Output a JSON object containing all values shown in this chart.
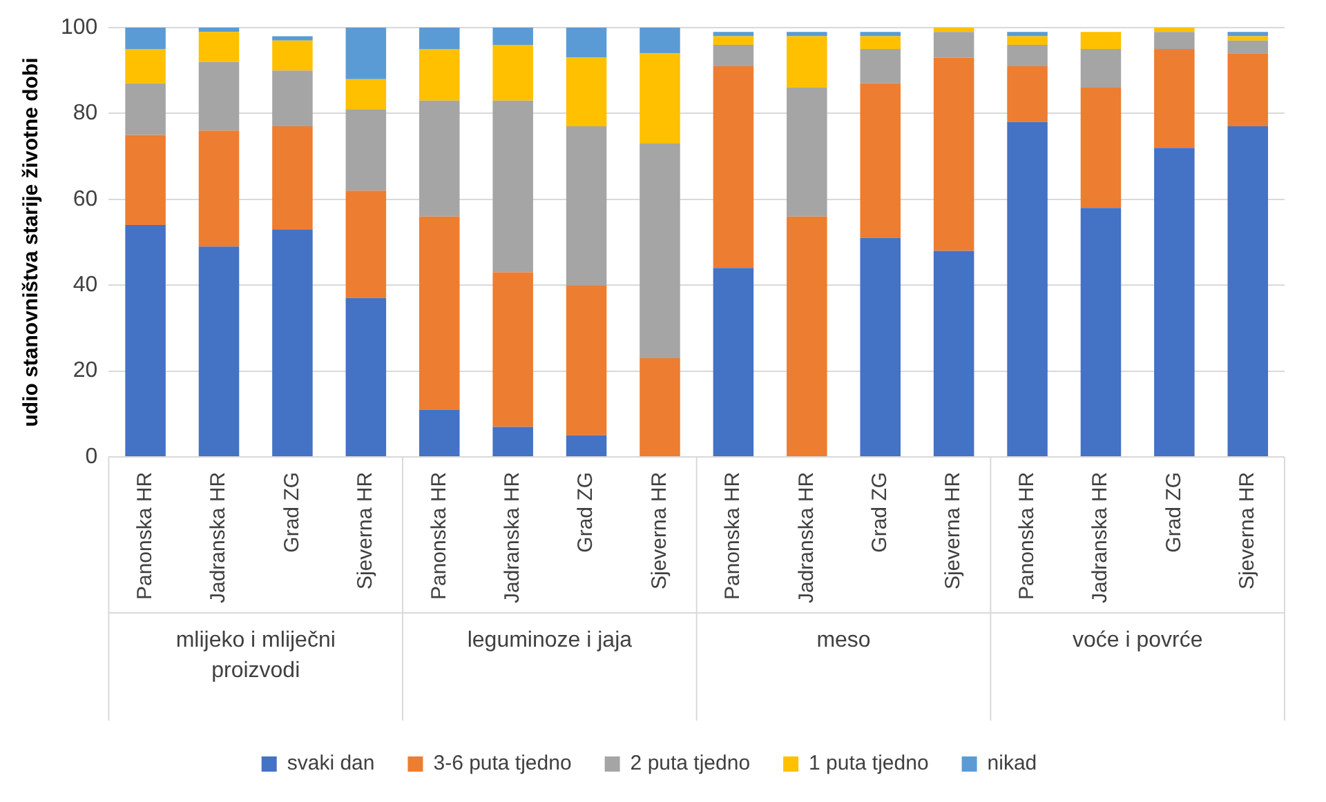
{
  "chart_data": {
    "type": "bar",
    "stacked": true,
    "ylabel": "udio stanovništva starije životne dobi",
    "categories": [
      "Panonska HR",
      "Jadranska HR",
      "Grad ZG",
      "Sjeverna HR",
      "Panonska HR",
      "Jadranska HR",
      "Grad ZG",
      "Sjeverna HR",
      "Panonska HR",
      "Jadranska HR",
      "Grad ZG",
      "Sjeverna HR",
      "Panonska HR",
      "Jadranska HR",
      "Grad ZG",
      "Sjeverna HR"
    ],
    "annotations": [
      "mlijeko i mliječni proizvodi",
      "leguminoze i jaja",
      "meso",
      "voće i povrće"
    ],
    "series": [
      {
        "name": "svaki dan",
        "color": "#4472c4",
        "values": [
          54,
          49,
          53,
          37,
          11,
          7,
          5,
          0,
          44,
          0,
          51,
          48,
          78,
          58,
          72,
          77
        ]
      },
      {
        "name": "3-6 puta tjedno",
        "color": "#ed7d31",
        "values": [
          21,
          27,
          24,
          25,
          45,
          36,
          35,
          23,
          47,
          56,
          36,
          45,
          13,
          28,
          23,
          17
        ]
      },
      {
        "name": "2 puta tjedno",
        "color": "#a5a5a5",
        "values": [
          12,
          16,
          13,
          19,
          27,
          40,
          37,
          50,
          5,
          30,
          8,
          6,
          5,
          9,
          4,
          3
        ]
      },
      {
        "name": "1 puta tjedno",
        "color": "#ffc000",
        "values": [
          8,
          7,
          7,
          7,
          12,
          13,
          16,
          21,
          2,
          12,
          3,
          1,
          2,
          4,
          1,
          1
        ]
      },
      {
        "name": "nikad",
        "color": "#5b9bd5",
        "values": [
          5,
          1,
          1,
          12,
          5,
          4,
          7,
          6,
          1,
          1,
          1,
          0,
          1,
          0,
          0,
          1
        ]
      }
    ],
    "ylim": [
      0,
      100
    ],
    "yticks": [
      0,
      20,
      40,
      60,
      80,
      100
    ],
    "grid": "y",
    "legend": "bottom"
  }
}
